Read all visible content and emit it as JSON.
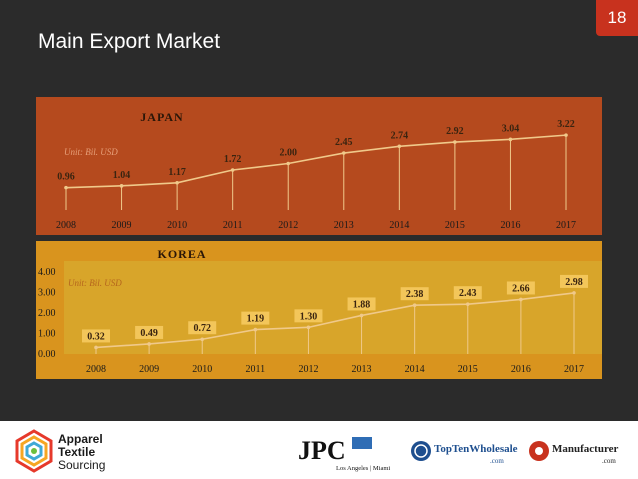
{
  "slide": {
    "number": "18",
    "title": "Main Export Market"
  },
  "colors": {
    "background": "#2b2b2b",
    "badge": "#c8321e",
    "japan_panel": "#b54a1e",
    "korea_panel": "#d9941e",
    "korea_plot": "#d8a52a",
    "line": "#f0c98a",
    "data_label": "#3a2410",
    "korea_unit_text": "#b5651d"
  },
  "chart_data": [
    {
      "type": "line",
      "title": "JAPAN",
      "annotation": "Unit: Bil. USD",
      "categories": [
        "2008",
        "2009",
        "2010",
        "2011",
        "2012",
        "2013",
        "2014",
        "2015",
        "2016",
        "2017"
      ],
      "values": [
        0.96,
        1.04,
        1.17,
        1.72,
        2.0,
        2.45,
        2.74,
        2.92,
        3.04,
        3.22
      ],
      "data_labels": [
        "0.96",
        "1.04",
        "1.17",
        "1.72",
        "2.00",
        "2.45",
        "2.74",
        "2.92",
        "3.04",
        "3.22"
      ],
      "ylim": [
        0,
        4
      ],
      "y_ticks": [],
      "grid": false,
      "drop_lines": true
    },
    {
      "type": "line",
      "title": "KOREA",
      "annotation": "Unit: Bil. USD",
      "categories": [
        "2008",
        "2009",
        "2010",
        "2011",
        "2012",
        "2013",
        "2014",
        "2015",
        "2016",
        "2017"
      ],
      "values": [
        0.32,
        0.49,
        0.72,
        1.19,
        1.3,
        1.88,
        2.38,
        2.43,
        2.66,
        2.98
      ],
      "data_labels": [
        "0.32",
        "0.49",
        "0.72",
        "1.19",
        "1.30",
        "1.88",
        "2.38",
        "2.43",
        "2.66",
        "2.98"
      ],
      "ylim": [
        0,
        4
      ],
      "y_ticks": [
        "0.00",
        "1.00",
        "2.00",
        "3.00",
        "4.00"
      ],
      "grid": false,
      "drop_lines": true
    }
  ],
  "footer": {
    "apparel_logo": [
      "Apparel",
      "Textile",
      "Sourcing"
    ],
    "jpc_logo": {
      "main": "JPC",
      "sub": "Los Angeles | Miami"
    },
    "topten_logo": {
      "main": "TopTenWholesale",
      "sub": ".com"
    },
    "manufacturer_logo": {
      "main": "Manufacturer",
      "sub": ".com"
    }
  }
}
